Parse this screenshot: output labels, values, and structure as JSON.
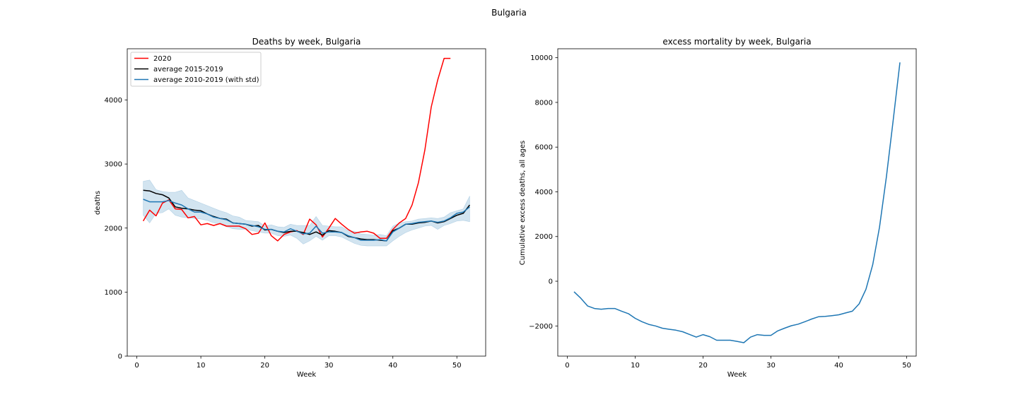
{
  "figure_title": "Bulgaria",
  "colors": {
    "red": "#ff0000",
    "black": "#000000",
    "blue": "#1f77b4",
    "band": "#1f77b4"
  },
  "chart_data": [
    {
      "type": "line",
      "title": "Deaths by week, Bulgaria",
      "xlabel": "Week",
      "ylabel": "deaths",
      "xlim": [
        -1.5,
        54.5
      ],
      "ylim": [
        0,
        4800
      ],
      "xticks": [
        0,
        10,
        20,
        30,
        40,
        50
      ],
      "yticks": [
        0,
        1000,
        2000,
        3000,
        4000
      ],
      "legend": {
        "position": "top-left"
      },
      "series": [
        {
          "name": "2020",
          "color": "#ff0000",
          "x": [
            1,
            2,
            3,
            4,
            5,
            6,
            7,
            8,
            9,
            10,
            11,
            12,
            13,
            14,
            15,
            16,
            17,
            18,
            19,
            20,
            21,
            22,
            23,
            24,
            25,
            26,
            27,
            28,
            29,
            30,
            31,
            32,
            33,
            34,
            35,
            36,
            37,
            38,
            39,
            40,
            41,
            42,
            43,
            44,
            45,
            46,
            47,
            48,
            49
          ],
          "values": [
            2110,
            2280,
            2190,
            2390,
            2440,
            2300,
            2290,
            2160,
            2180,
            2050,
            2070,
            2040,
            2070,
            2030,
            2030,
            2030,
            1990,
            1900,
            1920,
            2080,
            1880,
            1800,
            1900,
            1940,
            1960,
            1900,
            2140,
            2050,
            1860,
            2000,
            2150,
            2060,
            1980,
            1920,
            1940,
            1950,
            1920,
            1840,
            1840,
            1980,
            2080,
            2150,
            2360,
            2710,
            3220,
            3890,
            4310,
            4650,
            4650
          ]
        },
        {
          "name": "average 2015-2019",
          "color": "#000000",
          "x": [
            1,
            2,
            3,
            4,
            5,
            6,
            7,
            8,
            9,
            10,
            11,
            12,
            13,
            14,
            15,
            16,
            17,
            18,
            19,
            20,
            21,
            22,
            23,
            24,
            25,
            26,
            27,
            28,
            29,
            30,
            31,
            32,
            33,
            34,
            35,
            36,
            37,
            38,
            39,
            40,
            41,
            42,
            43,
            44,
            45,
            46,
            47,
            48,
            49,
            50,
            51,
            52
          ],
          "values": [
            2590,
            2580,
            2540,
            2520,
            2470,
            2330,
            2310,
            2300,
            2280,
            2270,
            2220,
            2180,
            2150,
            2140,
            2080,
            2070,
            2060,
            2030,
            2040,
            1970,
            1980,
            1950,
            1930,
            1950,
            1950,
            1930,
            1900,
            1940,
            1890,
            1960,
            1950,
            1930,
            1870,
            1850,
            1830,
            1820,
            1820,
            1810,
            1800,
            1960,
            2000,
            2060,
            2060,
            2080,
            2090,
            2110,
            2080,
            2100,
            2150,
            2200,
            2230,
            2360
          ]
        },
        {
          "name": "average 2010-2019 (with std)",
          "color": "#1f77b4",
          "x": [
            1,
            2,
            3,
            4,
            5,
            6,
            7,
            8,
            9,
            10,
            11,
            12,
            13,
            14,
            15,
            16,
            17,
            18,
            19,
            20,
            21,
            22,
            23,
            24,
            25,
            26,
            27,
            28,
            29,
            30,
            31,
            32,
            33,
            34,
            35,
            36,
            37,
            38,
            39,
            40,
            41,
            42,
            43,
            44,
            45,
            46,
            47,
            48,
            49,
            50,
            51,
            52
          ],
          "values": [
            2450,
            2410,
            2410,
            2410,
            2430,
            2390,
            2360,
            2300,
            2250,
            2250,
            2220,
            2170,
            2150,
            2130,
            2080,
            2070,
            2060,
            2040,
            2020,
            1980,
            1980,
            1950,
            1940,
            1990,
            1950,
            1910,
            1920,
            2030,
            1920,
            1940,
            1940,
            1930,
            1880,
            1850,
            1810,
            1810,
            1810,
            1820,
            1800,
            1940,
            2000,
            2060,
            2070,
            2090,
            2100,
            2110,
            2090,
            2110,
            2160,
            2230,
            2250,
            2330
          ],
          "std_upper": [
            2730,
            2750,
            2600,
            2570,
            2560,
            2560,
            2590,
            2470,
            2430,
            2390,
            2350,
            2310,
            2270,
            2240,
            2190,
            2170,
            2120,
            2110,
            2100,
            2030,
            2050,
            2020,
            2010,
            2060,
            2040,
            2040,
            2040,
            2180,
            2040,
            2030,
            2020,
            2020,
            1960,
            1950,
            1910,
            1900,
            1890,
            1900,
            1880,
            2030,
            2080,
            2100,
            2110,
            2140,
            2150,
            2160,
            2150,
            2170,
            2240,
            2270,
            2300,
            2500
          ],
          "std_lower": [
            2200,
            2080,
            2230,
            2240,
            2300,
            2200,
            2170,
            2160,
            2150,
            2140,
            2120,
            2080,
            2060,
            2020,
            1990,
            1980,
            1980,
            1960,
            1940,
            1920,
            1920,
            1880,
            1870,
            1890,
            1840,
            1750,
            1800,
            1870,
            1810,
            1880,
            1880,
            1860,
            1810,
            1760,
            1730,
            1720,
            1720,
            1720,
            1720,
            1800,
            1870,
            1930,
            1970,
            2000,
            2030,
            2040,
            1980,
            2040,
            2070,
            2110,
            2120,
            2100
          ]
        }
      ]
    },
    {
      "type": "line",
      "title": "excess mortality by week, Bulgaria",
      "xlabel": "Week",
      "ylabel": "Cumulative excess deaths, all ages",
      "xlim": [
        -1.4,
        51.4
      ],
      "ylim": [
        -3350,
        10400
      ],
      "xticks": [
        0,
        10,
        20,
        30,
        40,
        50
      ],
      "yticks": [
        -2000,
        0,
        2000,
        4000,
        6000,
        8000,
        10000
      ],
      "series": [
        {
          "name": "cumulative excess deaths",
          "color": "#1f77b4",
          "x": [
            1,
            2,
            3,
            4,
            5,
            6,
            7,
            8,
            9,
            10,
            11,
            12,
            13,
            14,
            15,
            16,
            17,
            18,
            19,
            20,
            21,
            22,
            23,
            24,
            25,
            26,
            27,
            28,
            29,
            30,
            31,
            32,
            33,
            34,
            35,
            36,
            37,
            38,
            39,
            40,
            41,
            42,
            43,
            44,
            45,
            46,
            47,
            48,
            49
          ],
          "values": [
            -470,
            -760,
            -1110,
            -1220,
            -1250,
            -1220,
            -1220,
            -1340,
            -1450,
            -1660,
            -1810,
            -1930,
            -2000,
            -2100,
            -2150,
            -2190,
            -2260,
            -2380,
            -2500,
            -2390,
            -2480,
            -2640,
            -2640,
            -2640,
            -2690,
            -2750,
            -2500,
            -2390,
            -2420,
            -2420,
            -2220,
            -2100,
            -1990,
            -1920,
            -1810,
            -1690,
            -1590,
            -1570,
            -1540,
            -1500,
            -1420,
            -1340,
            -1010,
            -360,
            740,
            2420,
            4660,
            7190,
            9790
          ]
        }
      ]
    }
  ]
}
